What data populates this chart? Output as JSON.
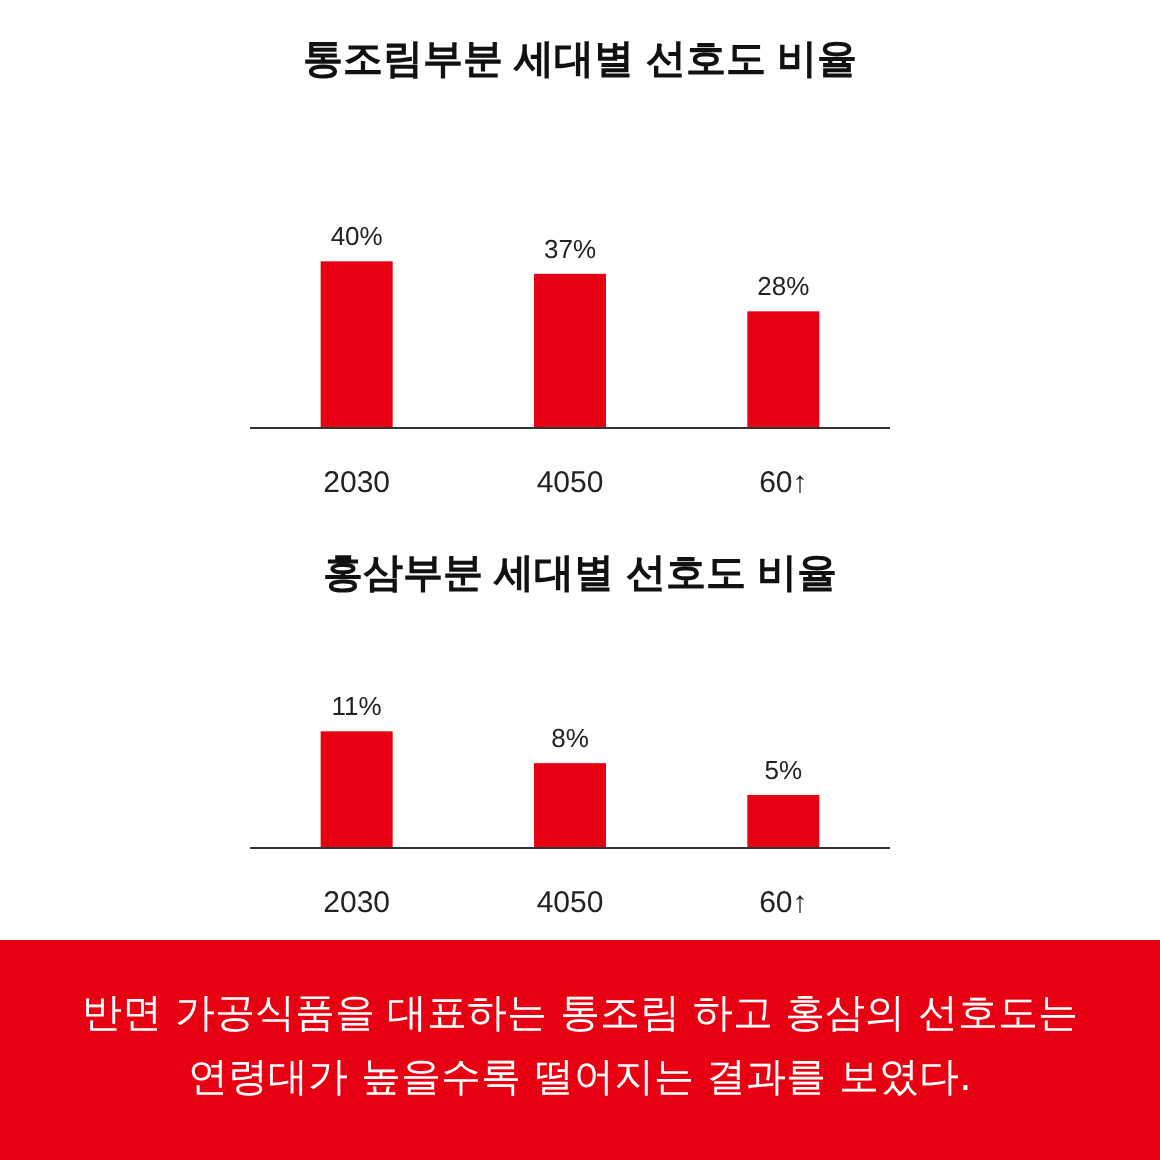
{
  "chart_data": [
    {
      "type": "bar",
      "title": "통조림부분 세대별 선호도 비율",
      "categories": [
        "2030",
        "4050",
        "60↑"
      ],
      "values": [
        40,
        37,
        28
      ],
      "color": "#e60012",
      "data_labels": true,
      "value_labels": [
        "40%",
        "37%",
        "28%"
      ]
    },
    {
      "type": "bar",
      "title": "홍삼부분 세대별 선호도 비율",
      "categories": [
        "2030",
        "4050",
        "60↑"
      ],
      "values": [
        11,
        8,
        5
      ],
      "color": "#e60012",
      "data_labels": true,
      "value_labels": [
        "11%",
        "8%",
        "5%"
      ],
      "annotations": [
        "반면 가공식품을 대표하는 통조림 하고 홍삼의 선호도는 연령대가 높을수록 떨어지는 결과를 보였다."
      ]
    }
  ]
}
